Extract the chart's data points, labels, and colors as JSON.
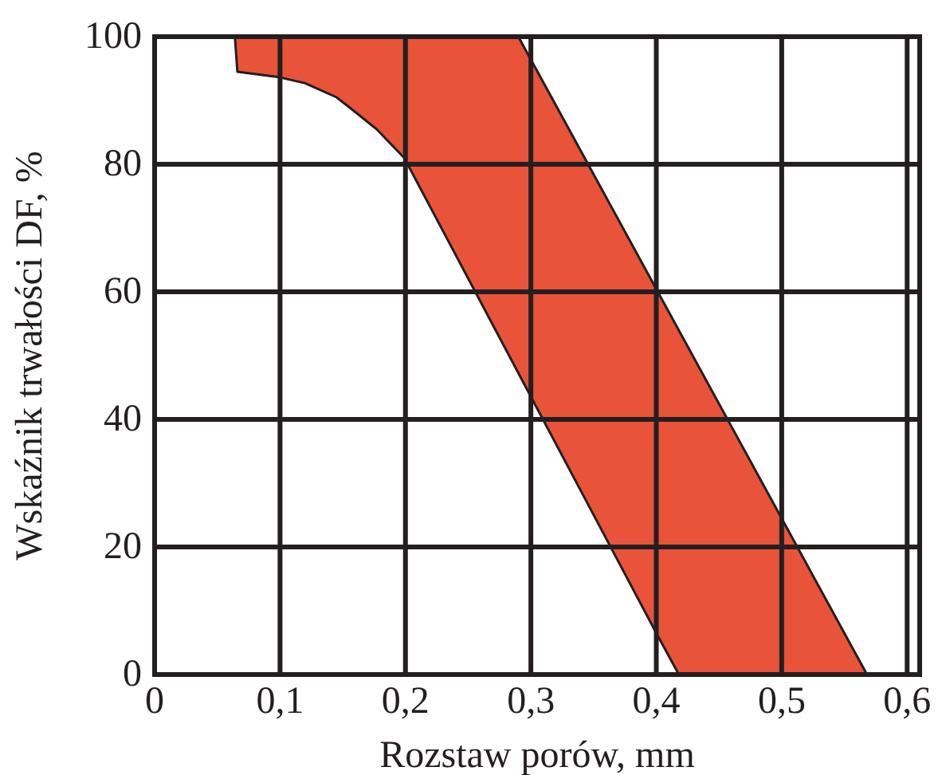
{
  "chart_data": {
    "type": "area",
    "xlabel": "Rozstaw porów, mm",
    "ylabel": "Wskaźnik trwałości DF, %",
    "xlim": [
      0,
      0.61
    ],
    "ylim": [
      0,
      100
    ],
    "xticks": [
      0,
      {
        "value": 0.1,
        "label": "0,1"
      },
      {
        "value": 0.2,
        "label": "0,2"
      },
      {
        "value": 0.3,
        "label": "0,3"
      },
      {
        "value": 0.4,
        "label": "0,4"
      },
      {
        "value": 0.5,
        "label": "0,5"
      },
      {
        "value": 0.6,
        "label": "0,6"
      }
    ],
    "yticks": [
      0,
      20,
      40,
      60,
      80,
      100
    ],
    "grid": true,
    "series": [
      {
        "color": "#e8533a",
        "x": [
          0.064,
          0.066,
          0.098,
          0.12,
          0.145,
          0.158,
          0.177,
          0.199,
          0.4,
          0.418,
          0.568,
          0.29
        ],
        "values": [
          100,
          94.5,
          93.7,
          92.7,
          90.5,
          88.5,
          85.5,
          81,
          6.5,
          0,
          0,
          100
        ]
      }
    ]
  }
}
